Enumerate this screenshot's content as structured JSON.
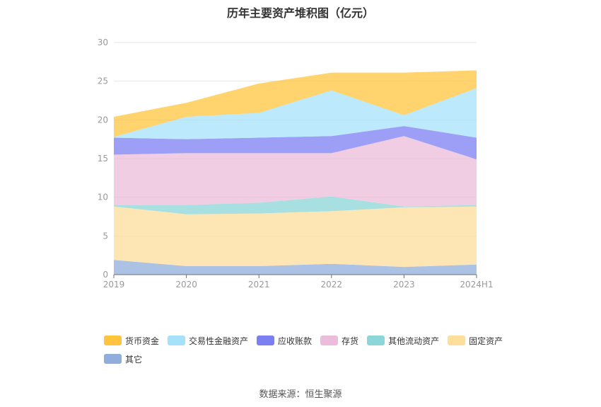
{
  "chart_data": {
    "type": "area",
    "stacked": true,
    "title": "历年主要资产堆积图（亿元）",
    "source": "数据来源：恒生聚源",
    "categories": [
      "2019",
      "2020",
      "2021",
      "2022",
      "2023",
      "2024H1"
    ],
    "y_ticks": [
      "0",
      "5",
      "10",
      "15",
      "20",
      "25",
      "30"
    ],
    "ylim": [
      0,
      30
    ],
    "grid": true,
    "legend_position": "bottom",
    "series": [
      {
        "name": "其它",
        "color": "#8FAEDB",
        "values": [
          1.9,
          1.1,
          1.1,
          1.4,
          1.0,
          1.3
        ]
      },
      {
        "name": "固定资产",
        "color": "#FEDE9B",
        "values": [
          6.9,
          6.7,
          6.8,
          6.8,
          7.7,
          7.5
        ]
      },
      {
        "name": "其他流动资产",
        "color": "#8BD6D8",
        "values": [
          0.2,
          1.2,
          1.4,
          1.9,
          0.1,
          0.2
        ]
      },
      {
        "name": "存货",
        "color": "#ECBCDB",
        "values": [
          6.5,
          6.7,
          6.4,
          5.6,
          9.1,
          5.9
        ]
      },
      {
        "name": "应收账款",
        "color": "#7B7FF2",
        "values": [
          2.2,
          1.8,
          2.0,
          2.2,
          1.3,
          2.8
        ]
      },
      {
        "name": "交易性金融资产",
        "color": "#A5E1FA",
        "values": [
          0.1,
          2.9,
          3.2,
          5.9,
          1.4,
          6.4
        ]
      },
      {
        "name": "货币资金",
        "color": "#FFC43D",
        "values": [
          2.6,
          1.8,
          3.8,
          2.3,
          5.5,
          2.3
        ]
      }
    ],
    "legend_order": [
      "货币资金",
      "交易性金融资产",
      "应收账款",
      "存货",
      "其他流动资产",
      "固定资产",
      "其它"
    ]
  }
}
